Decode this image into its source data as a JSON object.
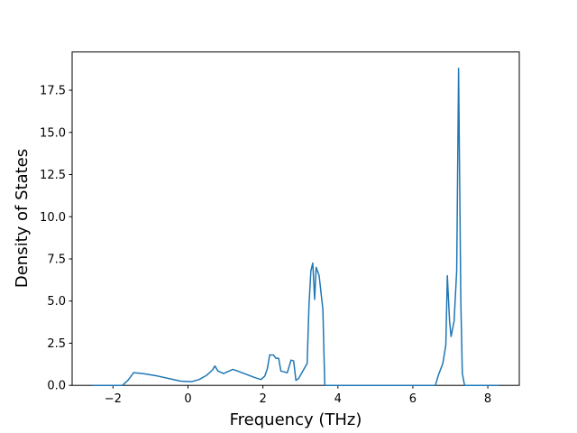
{
  "chart_data": {
    "type": "line",
    "xlabel": "Frequency (THz)",
    "ylabel": "Density of States",
    "x": [
      -2.55,
      -1.75,
      -1.6,
      -1.45,
      -1.2,
      -0.8,
      -0.4,
      -0.2,
      0.1,
      0.3,
      0.5,
      0.65,
      0.72,
      0.8,
      0.95,
      1.2,
      1.5,
      1.8,
      1.95,
      2.05,
      2.12,
      2.18,
      2.28,
      2.35,
      2.42,
      2.48,
      2.65,
      2.75,
      2.82,
      2.88,
      2.95,
      3.18,
      3.23,
      3.28,
      3.33,
      3.38,
      3.42,
      3.5,
      3.6,
      3.65,
      6.6,
      6.68,
      6.8,
      6.88,
      6.92,
      6.98,
      7.02,
      7.1,
      7.17,
      7.22,
      7.28,
      7.32,
      7.38,
      8.3
    ],
    "series": [
      {
        "color": "#1f77b4",
        "values": [
          0,
          0,
          0.3,
          0.75,
          0.7,
          0.55,
          0.35,
          0.25,
          0.22,
          0.35,
          0.6,
          0.9,
          1.15,
          0.85,
          0.7,
          0.95,
          0.7,
          0.45,
          0.35,
          0.55,
          1.0,
          1.8,
          1.8,
          1.6,
          1.6,
          0.85,
          0.75,
          1.5,
          1.45,
          0.3,
          0.4,
          1.3,
          4.8,
          6.8,
          7.25,
          5.1,
          7.0,
          6.5,
          4.5,
          0,
          0,
          0.6,
          1.3,
          2.4,
          6.5,
          3.8,
          2.9,
          3.8,
          6.8,
          18.8,
          5.0,
          0.7,
          0,
          0
        ]
      }
    ],
    "xlim": [
      -3.09,
      8.84
    ],
    "ylim": [
      0,
      19.77
    ],
    "xticks": [
      {
        "value": -2,
        "label": "−2"
      },
      0,
      2,
      4,
      6,
      8
    ],
    "yticks": [
      {
        "value": 0,
        "label": "0.0"
      },
      2.5,
      {
        "value": 5,
        "label": "5.0"
      },
      7.5,
      {
        "value": 10,
        "label": "10.0"
      },
      12.5,
      {
        "value": 15,
        "label": "15.0"
      },
      17.5
    ]
  }
}
